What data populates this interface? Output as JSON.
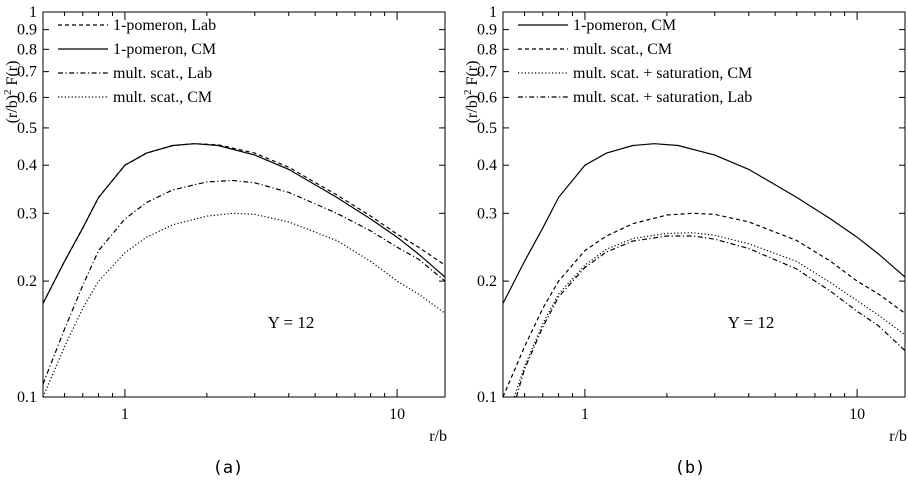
{
  "chart_data": [
    {
      "type": "line",
      "panel_label": "(a)",
      "xlabel": "r/b",
      "ylabel_prefix": "(r/b)",
      "ylabel_exp": "2",
      "ylabel_suffix": " F(r)",
      "xscale": "log",
      "yscale": "log",
      "xlim": [
        0.5,
        15
      ],
      "ylim": [
        0.1,
        1
      ],
      "xticks": [
        1,
        10
      ],
      "xticklabels": [
        "1",
        "10"
      ],
      "yticks": [
        0.1,
        0.2,
        0.3,
        0.4,
        0.5,
        0.6,
        0.7,
        0.8,
        0.9,
        1
      ],
      "yticklabels": [
        "0.1",
        "0.2",
        "0.3",
        "0.4",
        "0.5",
        "0.6",
        "0.7",
        "0.8",
        "0.9",
        "1"
      ],
      "annotation": "Y = 12",
      "legend_position": "top-left",
      "series": [
        {
          "name": "1-pomeron, Lab",
          "dash": "dashed",
          "x": [
            0.5,
            0.6,
            0.7,
            0.8,
            1.0,
            1.2,
            1.5,
            1.8,
            2.2,
            3.0,
            4.0,
            6.0,
            8.0,
            10.0,
            12.0,
            15.0
          ],
          "y": [
            0.175,
            0.225,
            0.275,
            0.33,
            0.4,
            0.43,
            0.45,
            0.455,
            0.452,
            0.43,
            0.395,
            0.335,
            0.295,
            0.265,
            0.245,
            0.22
          ]
        },
        {
          "name": "1-pomeron, CM",
          "dash": "solid",
          "x": [
            0.5,
            0.6,
            0.7,
            0.8,
            1.0,
            1.2,
            1.5,
            1.8,
            2.2,
            3.0,
            4.0,
            6.0,
            8.0,
            10.0,
            12.0,
            15.0
          ],
          "y": [
            0.175,
            0.225,
            0.275,
            0.33,
            0.4,
            0.43,
            0.45,
            0.455,
            0.45,
            0.425,
            0.39,
            0.33,
            0.29,
            0.26,
            0.235,
            0.205
          ]
        },
        {
          "name": "mult. scat., Lab",
          "dash": "dashdot",
          "x": [
            0.5,
            0.6,
            0.7,
            0.8,
            1.0,
            1.2,
            1.5,
            2.0,
            2.5,
            3.0,
            4.0,
            6.0,
            8.0,
            10.0,
            12.0,
            15.0
          ],
          "y": [
            0.108,
            0.15,
            0.195,
            0.24,
            0.29,
            0.32,
            0.345,
            0.362,
            0.365,
            0.36,
            0.34,
            0.3,
            0.27,
            0.245,
            0.228,
            0.2
          ]
        },
        {
          "name": "mult. scat., CM",
          "dash": "dotted",
          "x": [
            0.5,
            0.6,
            0.7,
            0.8,
            1.0,
            1.2,
            1.5,
            2.0,
            2.5,
            3.0,
            4.0,
            6.0,
            8.0,
            10.0,
            12.0,
            15.0
          ],
          "y": [
            0.1,
            0.135,
            0.17,
            0.2,
            0.237,
            0.26,
            0.28,
            0.295,
            0.3,
            0.298,
            0.285,
            0.255,
            0.225,
            0.2,
            0.185,
            0.165
          ]
        }
      ]
    },
    {
      "type": "line",
      "panel_label": "(b)",
      "xlabel": "r/b",
      "ylabel_prefix": "(r/b)",
      "ylabel_exp": "2",
      "ylabel_suffix": " F(r)",
      "xscale": "log",
      "yscale": "log",
      "xlim": [
        0.5,
        15
      ],
      "ylim": [
        0.1,
        1
      ],
      "xticks": [
        1,
        10
      ],
      "xticklabels": [
        "1",
        "10"
      ],
      "yticks": [
        0.1,
        0.2,
        0.3,
        0.4,
        0.5,
        0.6,
        0.7,
        0.8,
        0.9,
        1
      ],
      "yticklabels": [
        "0.1",
        "0.2",
        "0.3",
        "0.4",
        "0.5",
        "0.6",
        "0.7",
        "0.8",
        "0.9",
        "1"
      ],
      "annotation": "Y = 12",
      "legend_position": "top-left",
      "series": [
        {
          "name": "1-pomeron, CM",
          "dash": "solid",
          "x": [
            0.5,
            0.6,
            0.7,
            0.8,
            1.0,
            1.2,
            1.5,
            1.8,
            2.2,
            3.0,
            4.0,
            6.0,
            8.0,
            10.0,
            12.0,
            15.0
          ],
          "y": [
            0.175,
            0.225,
            0.275,
            0.33,
            0.4,
            0.43,
            0.45,
            0.455,
            0.45,
            0.425,
            0.39,
            0.33,
            0.29,
            0.26,
            0.235,
            0.205
          ]
        },
        {
          "name": "mult. scat., CM",
          "dash": "dashed",
          "x": [
            0.5,
            0.6,
            0.7,
            0.8,
            1.0,
            1.2,
            1.5,
            2.0,
            2.5,
            3.0,
            4.0,
            6.0,
            8.0,
            10.0,
            12.0,
            15.0
          ],
          "y": [
            0.1,
            0.135,
            0.17,
            0.2,
            0.24,
            0.262,
            0.282,
            0.297,
            0.3,
            0.298,
            0.285,
            0.255,
            0.225,
            0.2,
            0.185,
            0.165
          ]
        },
        {
          "name": "mult. scat. + saturation, CM",
          "dash": "dotted",
          "x": [
            0.55,
            0.6,
            0.7,
            0.8,
            1.0,
            1.2,
            1.5,
            2.0,
            2.5,
            3.0,
            4.0,
            6.0,
            8.0,
            10.0,
            12.0,
            15.0
          ],
          "y": [
            0.1,
            0.12,
            0.155,
            0.185,
            0.22,
            0.242,
            0.258,
            0.266,
            0.267,
            0.263,
            0.25,
            0.225,
            0.198,
            0.178,
            0.163,
            0.145
          ]
        },
        {
          "name": "mult. scat. + saturation, Lab",
          "dash": "dashdot",
          "x": [
            0.56,
            0.6,
            0.7,
            0.8,
            1.0,
            1.2,
            1.5,
            2.0,
            2.5,
            3.0,
            4.0,
            6.0,
            8.0,
            10.0,
            12.0,
            15.0
          ],
          "y": [
            0.1,
            0.118,
            0.152,
            0.182,
            0.217,
            0.238,
            0.254,
            0.262,
            0.262,
            0.257,
            0.243,
            0.215,
            0.188,
            0.167,
            0.153,
            0.132
          ]
        }
      ]
    }
  ]
}
